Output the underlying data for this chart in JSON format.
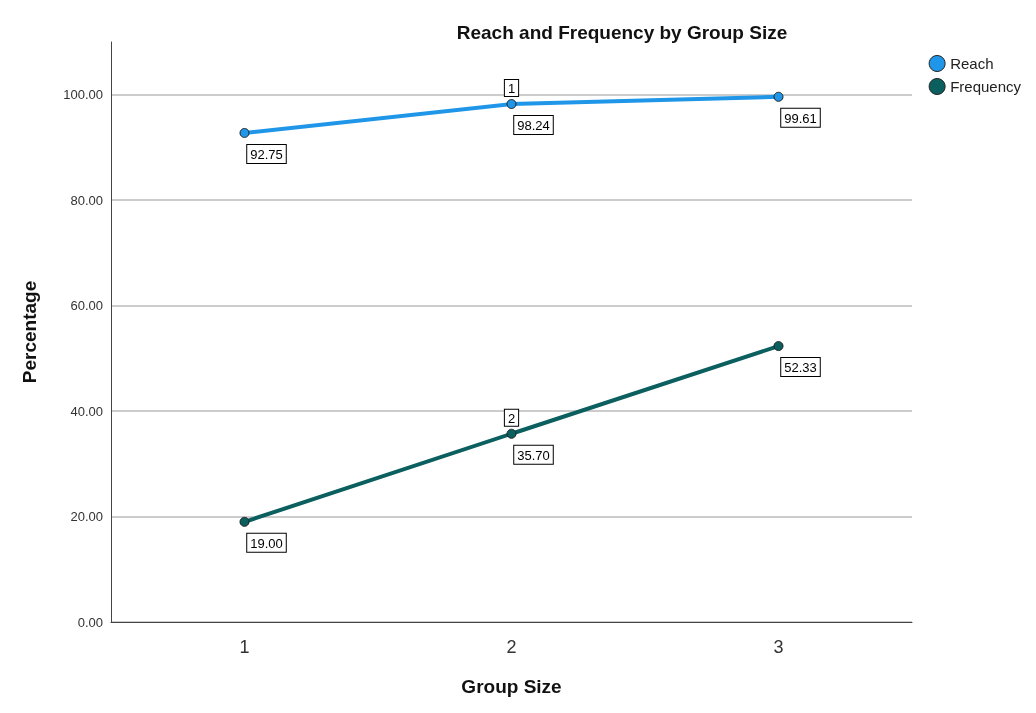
{
  "chart_data": {
    "type": "line",
    "title": "Reach and Frequency by Group Size",
    "xlabel": "Group Size",
    "ylabel": "Percentage",
    "categories": [
      "1",
      "2",
      "3"
    ],
    "series": [
      {
        "name": "Reach",
        "color": "#1f96e8",
        "values": [
          92.75,
          98.24,
          99.61
        ],
        "value_labels": [
          "92.75",
          "98.24",
          "99.61"
        ]
      },
      {
        "name": "Frequency",
        "color": "#0b5f5f",
        "values": [
          19.0,
          35.7,
          52.33
        ],
        "value_labels": [
          "19.00",
          "35.70",
          "52.33"
        ]
      }
    ],
    "annotations": [
      {
        "text": "1",
        "x": "2",
        "y": 98.24
      },
      {
        "text": "2",
        "x": "2",
        "y": 35.7
      }
    ],
    "ylim": [
      0,
      110
    ],
    "yticks": [
      {
        "value": 0,
        "label": "0.00"
      },
      {
        "value": 20,
        "label": "20.00"
      },
      {
        "value": 40,
        "label": "40.00"
      },
      {
        "value": 60,
        "label": "60.00"
      },
      {
        "value": 80,
        "label": "80.00"
      },
      {
        "value": 100,
        "label": "100.00"
      }
    ],
    "grid": "y",
    "legend": "top right",
    "marker": "circle",
    "line_style": "solid"
  }
}
